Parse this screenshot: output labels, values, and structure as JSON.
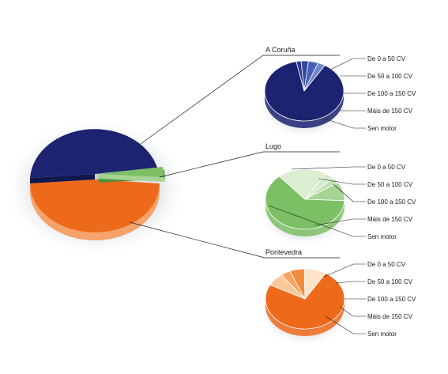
{
  "chart_data": {
    "type": "pie",
    "main": {
      "series": [
        {
          "name": "A Coruña",
          "color": "#1c2370",
          "side": "#121750"
        },
        {
          "name": "Lugo",
          "color": "#7cc065",
          "side": "#4f8f3e"
        },
        {
          "name": "Pontevedra",
          "color": "#ee6a1b",
          "side": "#f5a36a"
        }
      ]
    },
    "legend_labels": [
      "De 0 a 50 CV",
      "De 50 a 100 CV",
      "De 100 a 150 CV",
      "Máis de 150 CV",
      "Sen motor"
    ],
    "sub_pies": [
      {
        "title": "A Coruña",
        "palette": [
          "#1c2370",
          "#2b3a96",
          "#34479f",
          "#4560b5",
          "#6e86cc"
        ],
        "values": [
          88,
          2,
          3,
          4,
          3
        ]
      },
      {
        "title": "Lugo",
        "palette": [
          "#d6ebcc",
          "#bfe0b0",
          "#a6d493",
          "#7cc065",
          "#dbeed2"
        ],
        "values": [
          4,
          3,
          10,
          63,
          20
        ]
      },
      {
        "title": "Pontevedra",
        "palette": [
          "#ee6a1b",
          "#fbc89b",
          "#f7a360",
          "#f28c3c",
          "#fde3c8"
        ],
        "values": [
          74,
          7,
          4,
          6,
          9
        ]
      }
    ]
  }
}
